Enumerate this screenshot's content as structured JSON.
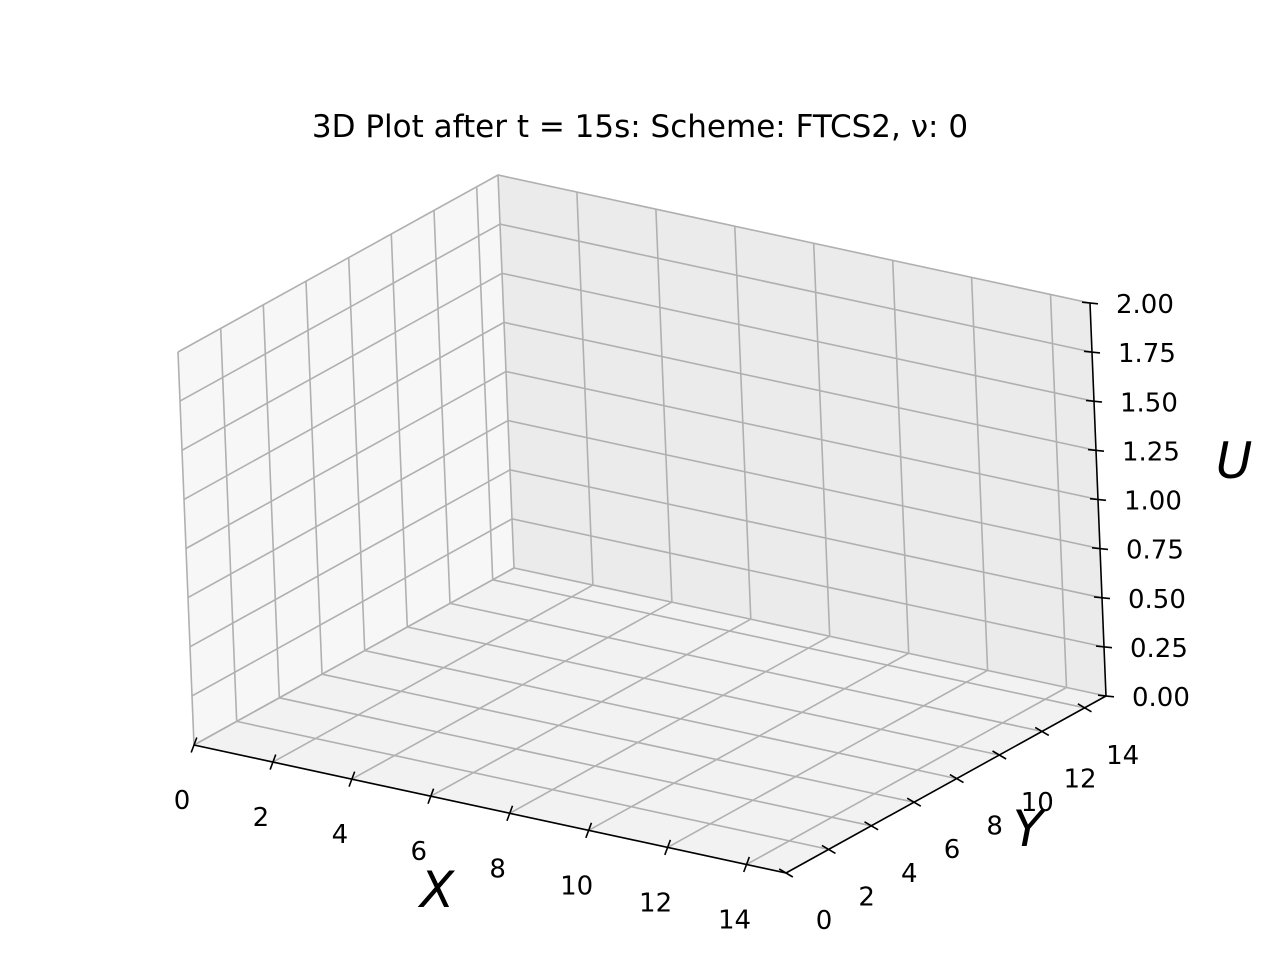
{
  "chart_data": {
    "type": "surface3d",
    "title": "3D Plot after t = 15s: Scheme: FTCS2, ν: 0",
    "xlabel": "X",
    "ylabel": "Y",
    "zlabel": "U",
    "x_ticks": [
      "0",
      "2",
      "4",
      "6",
      "8",
      "10",
      "12",
      "14"
    ],
    "y_ticks": [
      "0",
      "2",
      "4",
      "6",
      "8",
      "10",
      "12",
      "14"
    ],
    "z_ticks": [
      "0.00",
      "0.25",
      "0.50",
      "0.75",
      "1.00",
      "1.25",
      "1.50",
      "1.75",
      "2.00"
    ],
    "xlim": [
      0,
      15
    ],
    "ylim": [
      0,
      15
    ],
    "zlim": [
      0,
      2
    ],
    "grid": true,
    "series": []
  }
}
